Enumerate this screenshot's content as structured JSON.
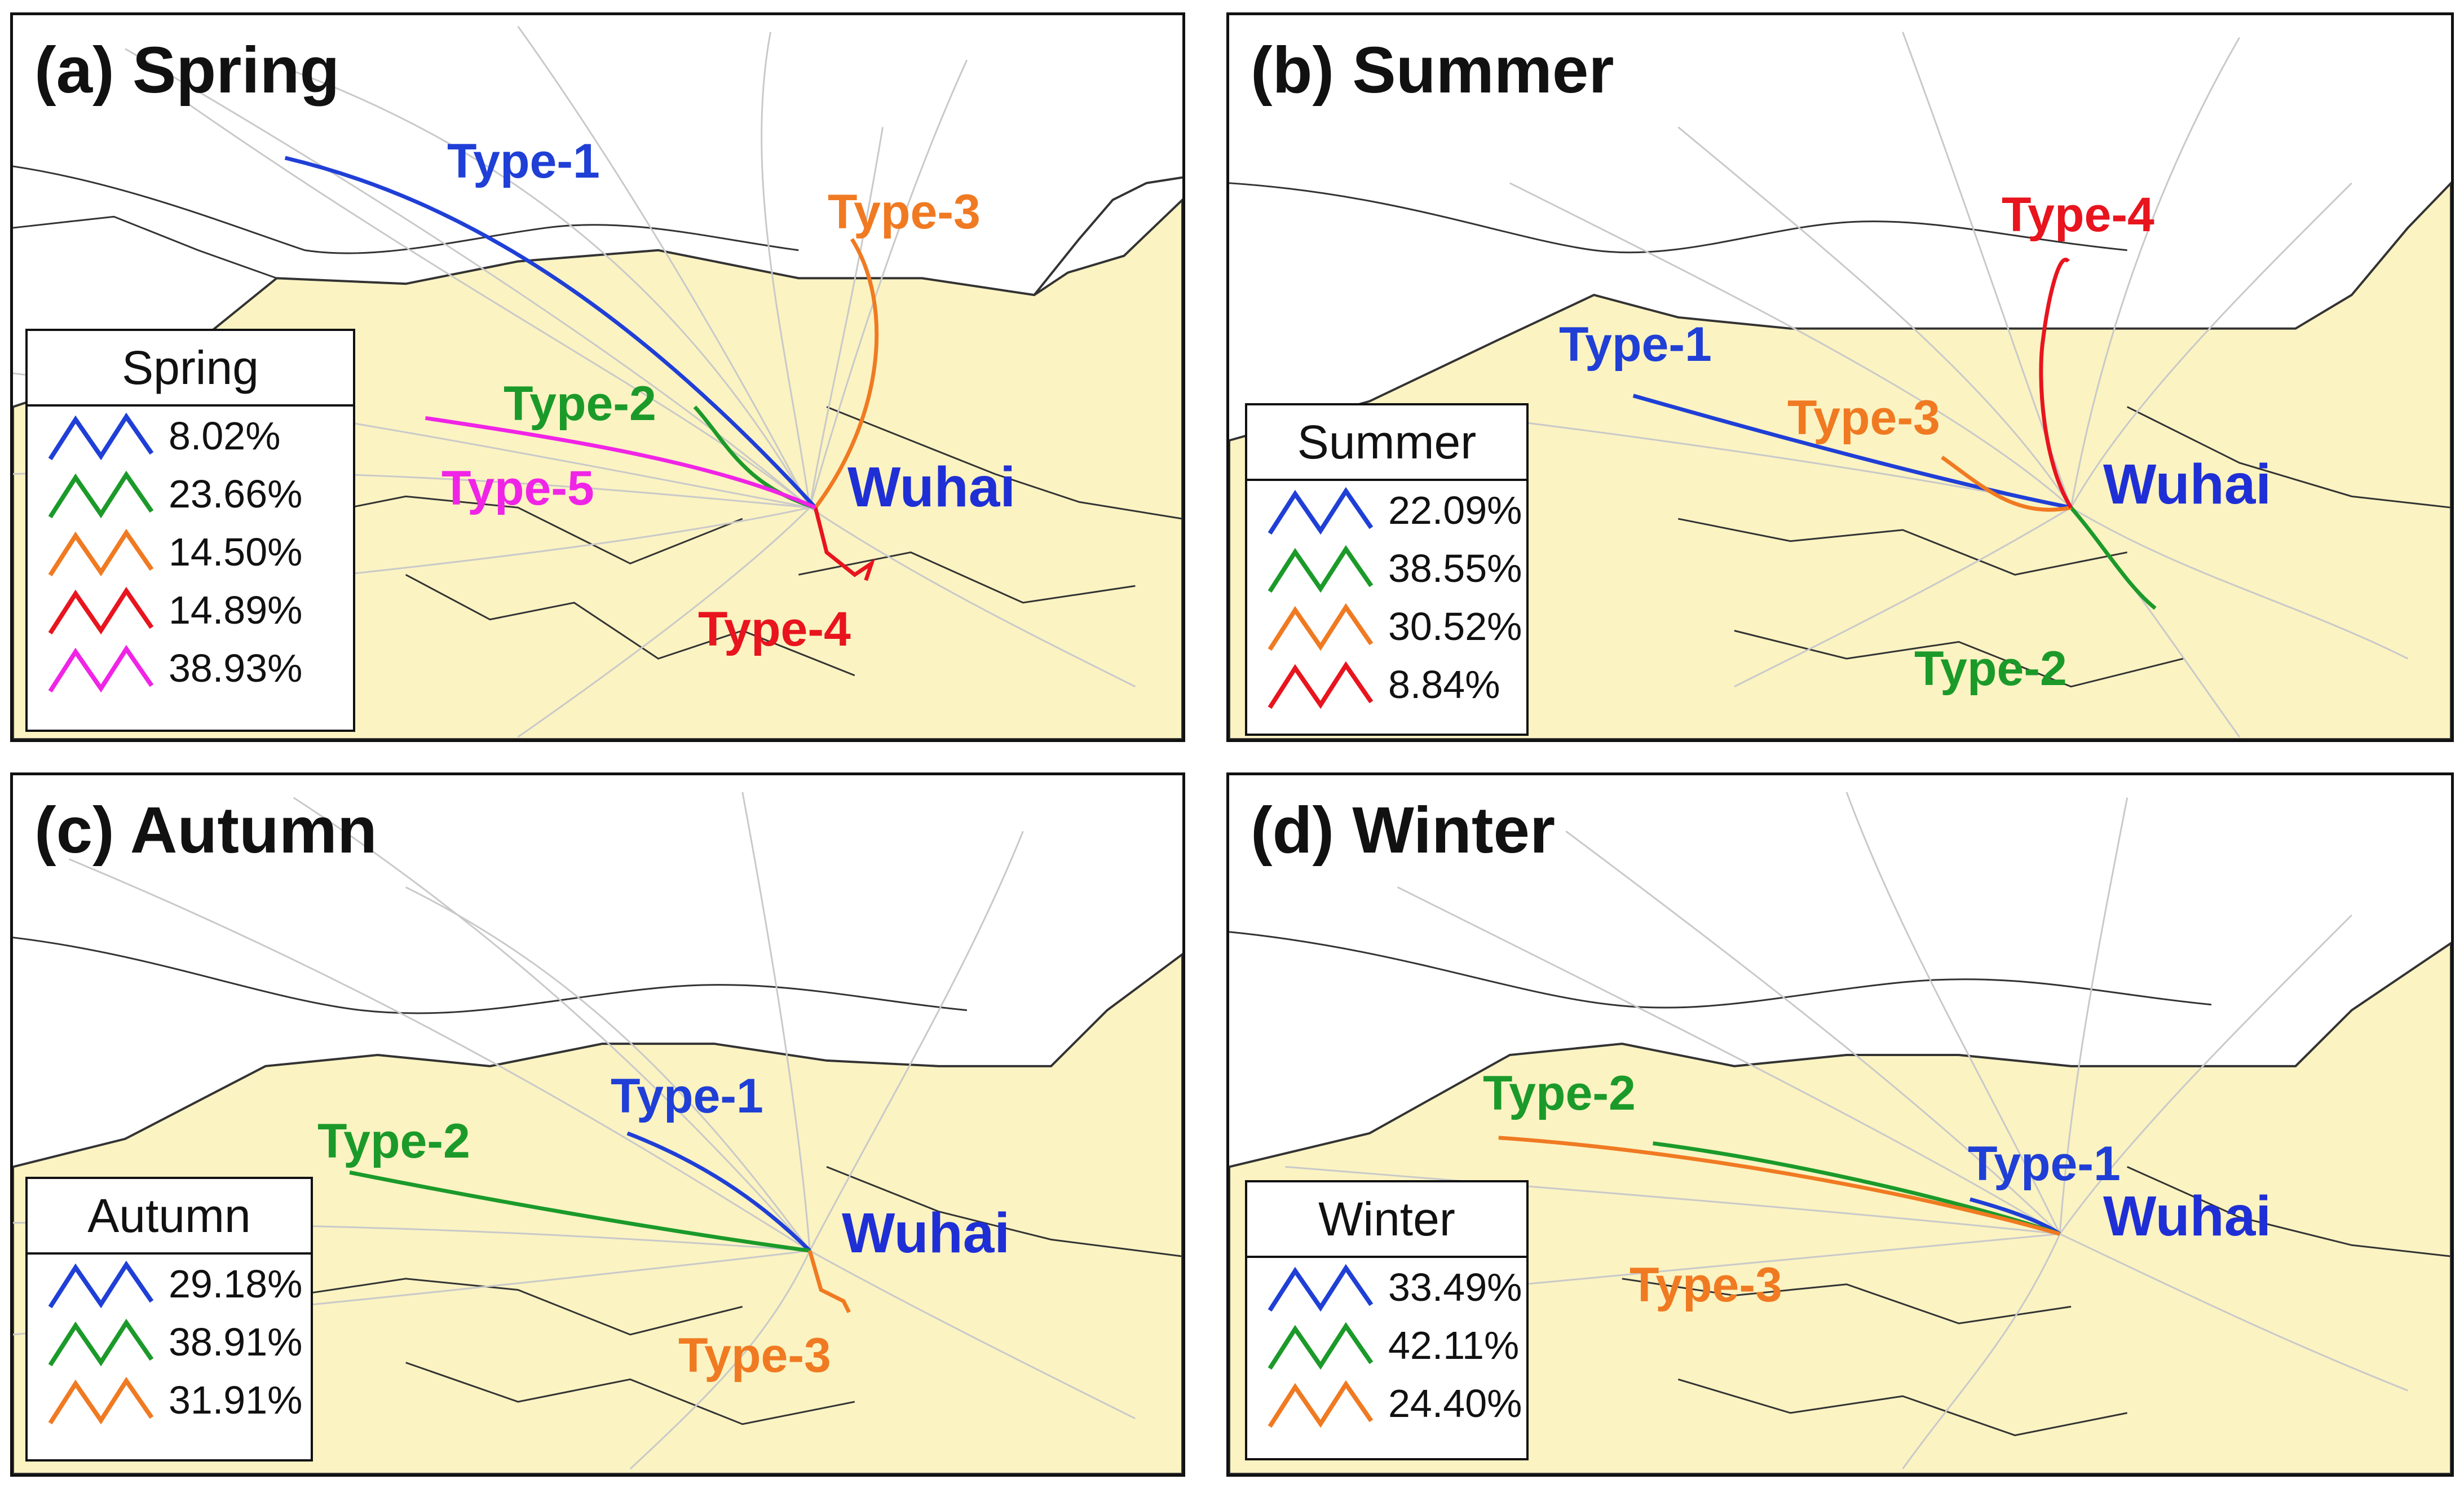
{
  "colors": {
    "land": "#fbf3c2",
    "background": "#ffffff",
    "border": "#333333",
    "trajectory": "#c9c9c9",
    "blue": "#1f3fd6",
    "green": "#1b9a2a",
    "orange": "#f07a22",
    "red": "#e8141e",
    "magenta": "#f024e6",
    "city": "#1f2fd6"
  },
  "city": "Wuhai",
  "panels": {
    "a": {
      "title": "(a) Spring",
      "legend_title": "Spring",
      "types": [
        {
          "label": "Type-1",
          "color": "#1f3fd6",
          "percent": "8.02%"
        },
        {
          "label": "Type-2",
          "color": "#1b9a2a",
          "percent": "23.66%"
        },
        {
          "label": "Type-3",
          "color": "#f07a22",
          "percent": "14.50%"
        },
        {
          "label": "Type-4",
          "color": "#e8141e",
          "percent": "14.89%"
        },
        {
          "label": "Type-5",
          "color": "#f024e6",
          "percent": "38.93%"
        }
      ]
    },
    "b": {
      "title": "(b) Summer",
      "legend_title": "Summer",
      "types": [
        {
          "label": "Type-1",
          "color": "#1f3fd6",
          "percent": "22.09%"
        },
        {
          "label": "Type-2",
          "color": "#1b9a2a",
          "percent": "38.55%"
        },
        {
          "label": "Type-3",
          "color": "#f07a22",
          "percent": "30.52%"
        },
        {
          "label": "Type-4",
          "color": "#e8141e",
          "percent": "8.84%"
        }
      ]
    },
    "c": {
      "title": "(c) Autumn",
      "legend_title": "Autumn",
      "types": [
        {
          "label": "Type-1",
          "color": "#1f3fd6",
          "percent": "29.18%"
        },
        {
          "label": "Type-2",
          "color": "#1b9a2a",
          "percent": "38.91%"
        },
        {
          "label": "Type-3",
          "color": "#f07a22",
          "percent": "31.91%"
        }
      ]
    },
    "d": {
      "title": "(d) Winter",
      "legend_title": "Winter",
      "types": [
        {
          "label": "Type-1",
          "color": "#1f3fd6",
          "percent": "33.49%"
        },
        {
          "label": "Type-2",
          "color": "#1b9a2a",
          "percent": "42.11%"
        },
        {
          "label": "Type-3",
          "color": "#f07a22",
          "percent": "24.40%"
        }
      ]
    }
  }
}
